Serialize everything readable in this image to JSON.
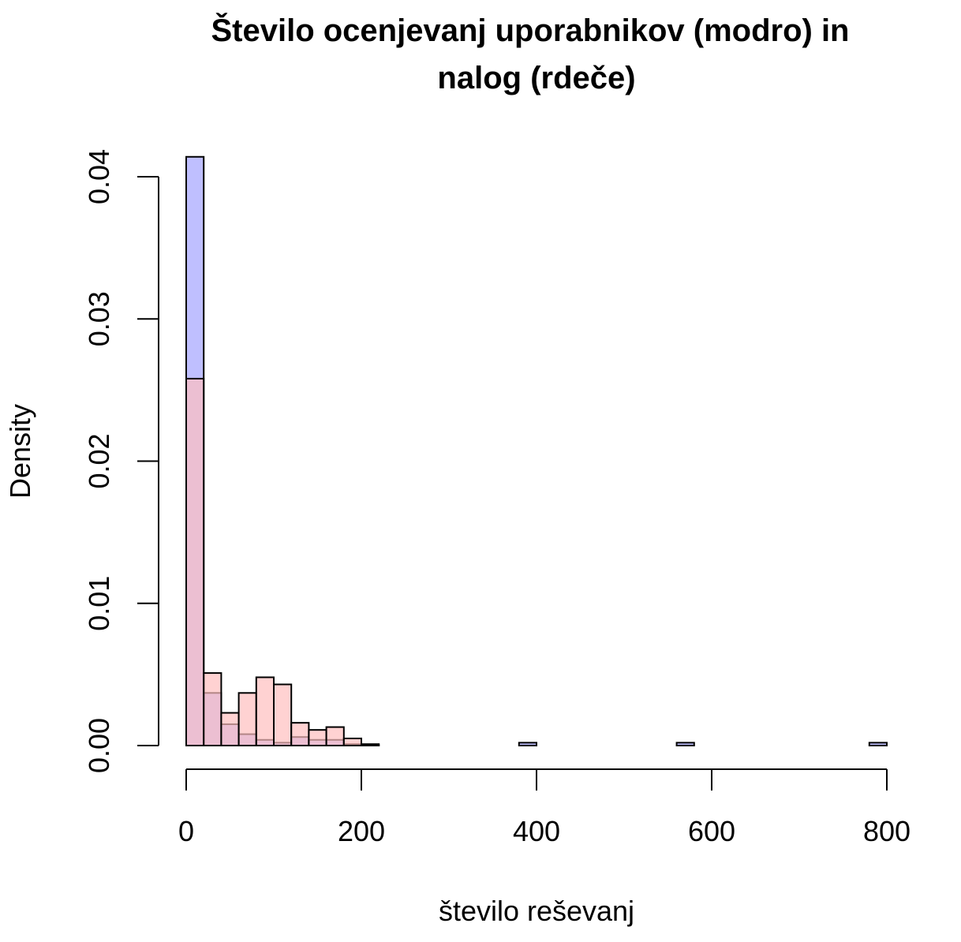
{
  "chart_data": {
    "type": "bar",
    "title_line1": "Število ocenjevanj uporabnikov (modro) in",
    "title_line2": "nalog (rdeče)",
    "xlabel": "število reševanj",
    "ylabel": "Density",
    "xlim": [
      0,
      800
    ],
    "ylim": [
      0,
      0.04
    ],
    "x_ticks": [
      "0",
      "200",
      "400",
      "600",
      "800"
    ],
    "y_ticks": [
      "0.00",
      "0.01",
      "0.02",
      "0.03",
      "0.04"
    ],
    "bin_width": 20,
    "legend": "none",
    "grid": false,
    "series": [
      {
        "color": "#bfbfff",
        "bins": [
          {
            "x0": 0,
            "density": 0.0414
          },
          {
            "x0": 20,
            "density": 0.0037
          },
          {
            "x0": 40,
            "density": 0.0015
          },
          {
            "x0": 60,
            "density": 0.0008
          },
          {
            "x0": 80,
            "density": 0.0004
          },
          {
            "x0": 100,
            "density": 0.0002
          },
          {
            "x0": 120,
            "density": 0.0006
          },
          {
            "x0": 140,
            "density": 0.0004
          },
          {
            "x0": 160,
            "density": 0.0004
          },
          {
            "x0": 180,
            "density": 0.0001
          },
          {
            "x0": 200,
            "density": 5e-05
          },
          {
            "x0": 380,
            "density": 0.0002
          },
          {
            "x0": 560,
            "density": 0.0002
          },
          {
            "x0": 780,
            "density": 0.0002
          }
        ]
      },
      {
        "color": "#ffbfbf",
        "bins": [
          {
            "x0": 0,
            "density": 0.0258
          },
          {
            "x0": 20,
            "density": 0.0051
          },
          {
            "x0": 40,
            "density": 0.0023
          },
          {
            "x0": 60,
            "density": 0.0037
          },
          {
            "x0": 80,
            "density": 0.0048
          },
          {
            "x0": 100,
            "density": 0.0043
          },
          {
            "x0": 120,
            "density": 0.0016
          },
          {
            "x0": 140,
            "density": 0.0011
          },
          {
            "x0": 160,
            "density": 0.0013
          },
          {
            "x0": 180,
            "density": 0.0005
          },
          {
            "x0": 200,
            "density": 0.0001
          }
        ]
      }
    ]
  }
}
